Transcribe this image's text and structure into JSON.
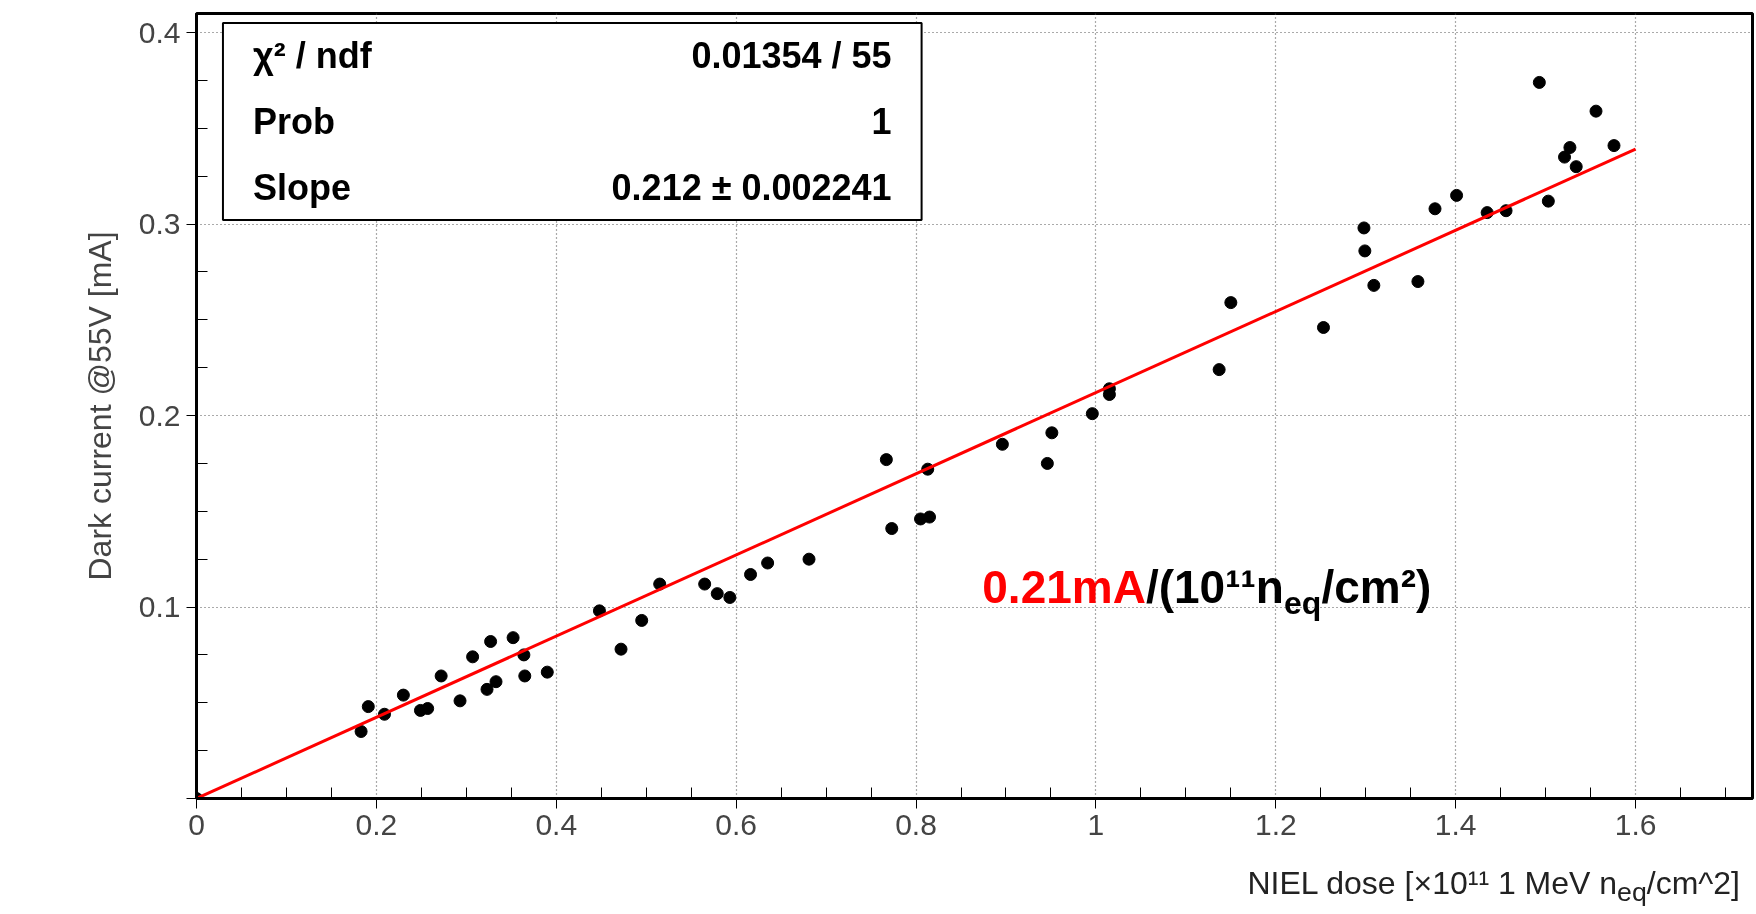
{
  "chart_data": {
    "type": "scatter",
    "xlabel": "NIEL dose [×10¹¹ 1 MeV n$_{eq}$/cm^2]",
    "ylabel": "Dark current @55V [mA]",
    "xlim": [
      0,
      1.73
    ],
    "ylim": [
      0,
      0.41
    ],
    "xticks": [
      0,
      0.2,
      0.4,
      0.6,
      0.8,
      1,
      1.2,
      1.4,
      1.6
    ],
    "yticks": [
      {
        "value": 0,
        "label": null
      },
      0.1,
      0.2,
      0.3,
      0.4
    ],
    "grid": true,
    "annotations": [
      "χ² / ndf",
      "0.01354 / 55",
      "Prob",
      "1",
      "Slope",
      "0.212 ± 0.002241",
      "0.21mA/(10¹¹n$_{eq}$/cm²)"
    ],
    "series": [
      {
        "color": "#000000",
        "marker": "circle",
        "x": [
          0,
          0.183,
          0.191,
          0.209,
          0.23,
          0.249,
          0.257,
          0.272,
          0.293,
          0.307,
          0.323,
          0.327,
          0.333,
          0.352,
          0.364,
          0.365,
          0.39,
          0.448,
          0.472,
          0.495,
          0.515,
          0.565,
          0.579,
          0.593,
          0.616,
          0.635,
          0.681,
          0.767,
          0.773,
          0.805,
          0.815,
          0.813,
          0.896,
          0.946,
          0.951,
          0.996,
          1.015,
          1.015,
          1.137,
          1.15,
          1.253,
          1.298,
          1.299,
          1.309,
          1.358,
          1.377,
          1.401,
          1.435,
          1.456,
          1.493,
          1.503,
          1.521,
          1.527,
          1.534,
          1.556,
          1.576
        ],
        "values": [
          0,
          0.035,
          0.048,
          0.044,
          0.054,
          0.046,
          0.047,
          0.064,
          0.051,
          0.074,
          0.057,
          0.082,
          0.061,
          0.084,
          0.075,
          0.064,
          0.066,
          0.098,
          0.078,
          0.093,
          0.112,
          0.112,
          0.107,
          0.105,
          0.117,
          0.123,
          0.125,
          0.177,
          0.141,
          0.146,
          0.147,
          0.172,
          0.185,
          0.175,
          0.191,
          0.201,
          0.211,
          0.214,
          0.224,
          0.259,
          0.246,
          0.298,
          0.286,
          0.268,
          0.27,
          0.308,
          0.315,
          0.306,
          0.307,
          0.374,
          0.312,
          0.335,
          0.34,
          0.33,
          0.359,
          0.341
        ]
      },
      {
        "type": "line",
        "color": "#ff0000",
        "x": [
          0,
          1.6
        ],
        "values": [
          0,
          0.3392
        ]
      }
    ]
  }
}
